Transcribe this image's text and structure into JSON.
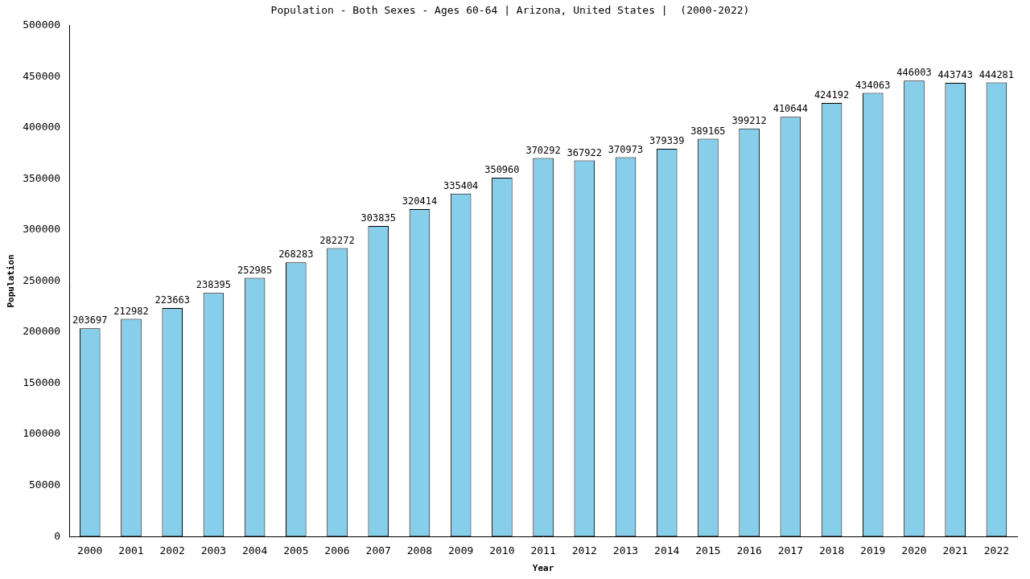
{
  "chart_data": {
    "type": "bar",
    "title": "Population - Both Sexes - Ages 60-64 | Arizona, United States |  (2000-2022)",
    "x_label": "Year",
    "y_label": "Population",
    "categories": [
      "2000",
      "2001",
      "2002",
      "2003",
      "2004",
      "2005",
      "2006",
      "2007",
      "2008",
      "2009",
      "2010",
      "2011",
      "2012",
      "2013",
      "2014",
      "2015",
      "2016",
      "2017",
      "2018",
      "2019",
      "2020",
      "2021",
      "2022"
    ],
    "values": [
      203697,
      212982,
      223663,
      238395,
      252985,
      268283,
      282272,
      303835,
      320414,
      335404,
      350960,
      370292,
      367922,
      370973,
      379339,
      389165,
      399212,
      410644,
      424192,
      434063,
      446003,
      443743,
      444281
    ],
    "color": "#87ceeb",
    "ylim": [
      0,
      500000
    ],
    "yticks": [
      0,
      50000,
      100000,
      150000,
      200000,
      250000,
      300000,
      350000,
      400000,
      450000,
      500000
    ],
    "grid": false,
    "data_labels": true
  }
}
